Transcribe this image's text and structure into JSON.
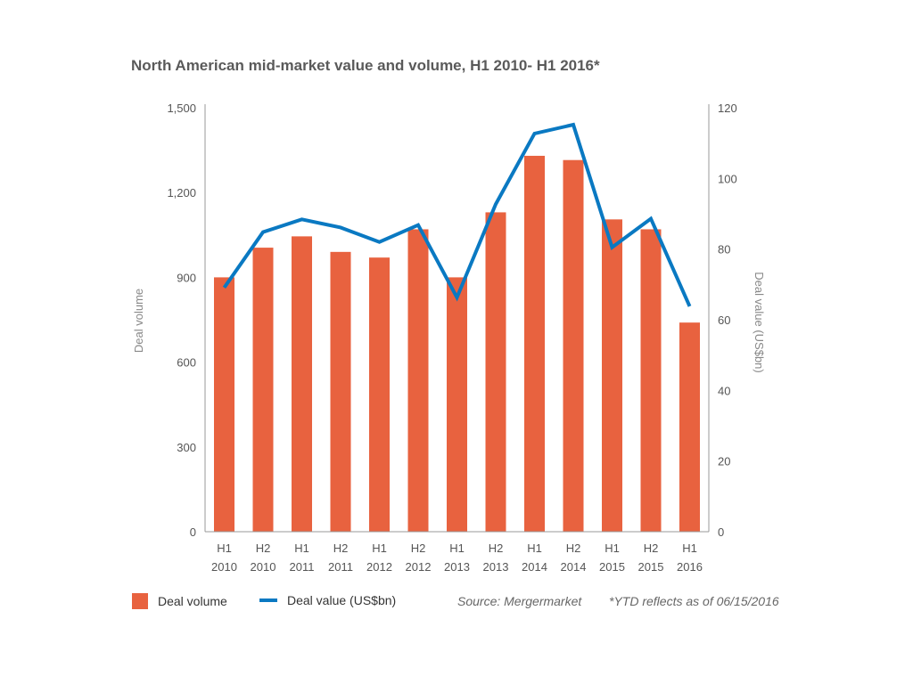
{
  "chart_data": {
    "type": "bar+line",
    "title": "North American mid-market value and volume, H1 2010- H1 2016*",
    "categories": [
      [
        "H1",
        "2010"
      ],
      [
        "H2",
        "2010"
      ],
      [
        "H1",
        "2011"
      ],
      [
        "H2",
        "2011"
      ],
      [
        "H1",
        "2012"
      ],
      [
        "H2",
        "2012"
      ],
      [
        "H1",
        "2013"
      ],
      [
        "H2",
        "2013"
      ],
      [
        "H1",
        "2014"
      ],
      [
        "H2",
        "2014"
      ],
      [
        "H1",
        "2015"
      ],
      [
        "H2",
        "2015"
      ],
      [
        "H1",
        "2016"
      ]
    ],
    "series": [
      {
        "name": "Deal volume",
        "type": "bar",
        "axis": "left",
        "color": "#e8623f",
        "values": [
          900,
          1005,
          1045,
          990,
          970,
          1070,
          900,
          1130,
          1330,
          1315,
          1105,
          1070,
          740
        ]
      },
      {
        "name": "Deal value (US$bn)",
        "type": "line",
        "axis": "right",
        "color": "#0a79c2",
        "values": [
          69.1,
          84.8,
          88.4,
          86.1,
          82.0,
          86.8,
          66.3,
          92.7,
          112.7,
          115.2,
          80.5,
          88.6,
          63.8
        ]
      }
    ],
    "ylabel_left": "Deal volume",
    "ylabel_right": "Deal value (US$bn)",
    "ylim_left": [
      0,
      1500
    ],
    "yticks_left": [
      "0",
      "300",
      "600",
      "900",
      "1,200",
      "1,500"
    ],
    "ylim_right": [
      0,
      120
    ],
    "yticks_right": [
      "0",
      "20",
      "40",
      "60",
      "80",
      "100",
      "120"
    ],
    "grid": false,
    "legend_position": "bottom-left",
    "source": "Source: Mergermarket",
    "footnote": "*YTD reflects as of 06/15/2016"
  }
}
